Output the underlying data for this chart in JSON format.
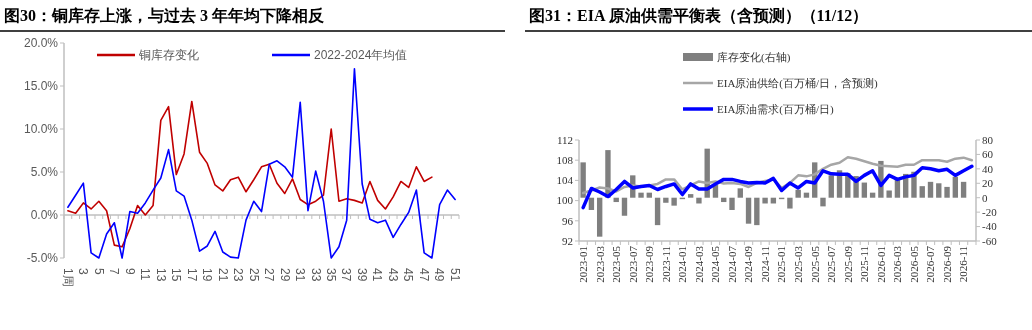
{
  "chart_data": [
    {
      "type": "line",
      "title": "图30：铜库存上涨，与过去 3 年年均下降相反",
      "categories": [
        "1周",
        null,
        "3",
        null,
        "5",
        null,
        "7",
        null,
        "9",
        null,
        "11",
        null,
        "13",
        null,
        "15",
        null,
        "17",
        null,
        "19",
        null,
        "21",
        null,
        "23",
        null,
        "25",
        null,
        "27",
        null,
        "29",
        null,
        "31",
        null,
        "33",
        null,
        "35",
        null,
        "37",
        null,
        "39",
        null,
        "41",
        null,
        "43",
        null,
        "45",
        null,
        "47",
        null,
        "49",
        null,
        "51"
      ],
      "series": [
        {
          "name": "铜库存变化",
          "color": "#c00000",
          "values": [
            0.5,
            0.2,
            1.4,
            0.7,
            1.6,
            0.5,
            -3.5,
            -3.7,
            -1.6,
            1.1,
            0.0,
            1.1,
            11.0,
            12.6,
            4.7,
            7.1,
            13.2,
            7.3,
            6.0,
            3.5,
            2.8,
            4.1,
            4.4,
            2.7,
            4.1,
            5.6,
            5.9,
            3.7,
            2.5,
            4.2,
            1.8,
            1.2,
            1.6,
            2.3,
            10.0,
            1.6,
            1.9,
            1.7,
            1.4,
            3.9,
            1.7,
            0.7,
            2.1,
            3.9,
            3.2,
            5.6,
            3.9,
            4.4,
            null,
            null,
            null
          ]
        },
        {
          "name": "2022-2024年均值",
          "color": "#0000ff",
          "values": [
            0.9,
            2.3,
            3.7,
            -4.4,
            -5,
            -2.2,
            -0.9,
            -5,
            0.4,
            0.2,
            1.4,
            2.9,
            4.3,
            7.6,
            2.8,
            2.2,
            -0.6,
            -4.2,
            -3.6,
            -1.9,
            -4.3,
            -4.9,
            -5,
            -0.6,
            1.6,
            0.4,
            5.9,
            6.3,
            5.6,
            4.4,
            13.1,
            0.5,
            5.1,
            1.6,
            -5,
            -3.7,
            -0.6,
            17.0,
            3.6,
            -0.5,
            -0.9,
            -0.6,
            -2.6,
            -1.1,
            0.3,
            2.9,
            -4.4,
            -5,
            1.2,
            2.9,
            1.8
          ]
        }
      ],
      "ylim": [
        -5,
        20
      ],
      "yticks": [
        {
          "value": -5,
          "label": "-5.0%"
        },
        {
          "value": 0,
          "label": "0.0%"
        },
        {
          "value": 5,
          "label": "5.0%"
        },
        {
          "value": 10,
          "label": "10.0%"
        },
        {
          "value": 15,
          "label": "15.0%"
        },
        {
          "value": 20,
          "label": "20.0%"
        }
      ],
      "legend": "top"
    },
    {
      "type": "line",
      "title": "图31：EIA 原油供需平衡表（含预测）（11/12）",
      "categories": [
        "2023-01",
        null,
        "2023-03",
        null,
        "2023-05",
        null,
        "2023-07",
        null,
        "2023-09",
        null,
        "2023-11",
        null,
        "2024-01",
        null,
        "2024-03",
        null,
        "2024-05",
        null,
        "2024-07",
        null,
        "2024-09",
        null,
        "2024-11",
        null,
        "2025-01",
        null,
        "2025-03",
        null,
        "2025-05",
        null,
        "2025-07",
        null,
        "2025-09",
        null,
        "2025-11",
        null,
        "2026-01",
        null,
        "2026-03",
        null,
        "2026-05",
        null,
        "2026-07",
        null,
        "2026-09",
        null,
        "2026-11",
        null
      ],
      "series": [
        {
          "name": "库存变化(右轴)",
          "type": "bar",
          "axis": "y2",
          "color": "#7f7f7f",
          "values": [
            49,
            -17,
            -54,
            66,
            -6,
            -25,
            31,
            7,
            7,
            -38,
            -7,
            -11,
            -2,
            5,
            -8,
            68,
            18,
            -6,
            -17,
            13,
            -36,
            -38,
            -8,
            -8,
            -2,
            -15,
            11,
            7,
            49,
            -12,
            31,
            38,
            34,
            30,
            21,
            7,
            51,
            10,
            26,
            33,
            36,
            16,
            22,
            20,
            15,
            29,
            22,
            null
          ]
        },
        {
          "name": "EIA原油供给(百万桶/日，含预测)",
          "color": "#a6a6a6",
          "values": [
            101.5,
            102.0,
            102.6,
            102.4,
            101.8,
            102.7,
            103.0,
            102.8,
            103.0,
            103.3,
            104.2,
            104.2,
            102.2,
            103.0,
            103.8,
            103.5,
            103.8,
            103.4,
            103.5,
            103.3,
            102.7,
            103.5,
            103.9,
            104.2,
            102.5,
            103.5,
            105.0,
            104.8,
            105.2,
            106.3,
            107.1,
            107.5,
            108.6,
            108.3,
            107.8,
            107.3,
            106.9,
            106.8,
            106.7,
            107.1,
            107.1,
            108.0,
            108.0,
            108.0,
            107.7,
            108.3,
            108.5,
            108.0
          ]
        },
        {
          "name": "EIA原油需求(百万桶/日)",
          "color": "#0000ff",
          "values": [
            98.6,
            102.4,
            101.7,
            100.8,
            102.2,
            103.8,
            102.5,
            102.8,
            103.0,
            102.2,
            102.8,
            103.3,
            101.2,
            103.3,
            102.3,
            102.3,
            103.3,
            104.2,
            104.2,
            103.8,
            103.5,
            103.6,
            103.5,
            104.4,
            102.0,
            103.5,
            102.5,
            103.8,
            103.5,
            105.9,
            105.3,
            105.2,
            105.2,
            103.8,
            105.0,
            105.9,
            103.0,
            105.0,
            104.2,
            104.7,
            105.0,
            106.5,
            106.3,
            105.9,
            106.2,
            105.0,
            105.9,
            106.8
          ]
        }
      ],
      "ylim": [
        92,
        112
      ],
      "yticks": [
        92,
        96,
        100,
        104,
        108,
        112
      ],
      "y2lim": [
        -60,
        80
      ],
      "y2ticks": [
        -60,
        -40,
        -20,
        0,
        20,
        40,
        60,
        80
      ],
      "legend": "top"
    }
  ]
}
